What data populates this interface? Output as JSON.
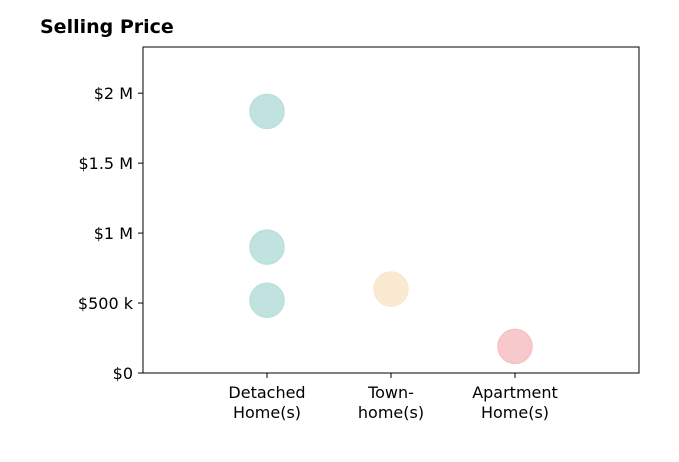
{
  "chart_data": {
    "type": "scatter",
    "title": "Selling Price",
    "xlabel": "",
    "ylabel": "",
    "categories": [
      [
        "Detached",
        "Home(s)"
      ],
      [
        "Town-",
        "home(s)"
      ],
      [
        "Apartment",
        "Home(s)"
      ]
    ],
    "y_ticks": [
      {
        "value": 0,
        "label": "$0"
      },
      {
        "value": 500000,
        "label": "$500 k"
      },
      {
        "value": 1000000,
        "label": "$1 M"
      },
      {
        "value": 1500000,
        "label": "$1.5 M"
      },
      {
        "value": 2000000,
        "label": "$2 M"
      }
    ],
    "ylim": [
      0,
      2330000
    ],
    "xlim": [
      -1,
      3
    ],
    "points": [
      {
        "category": 0,
        "value": 1870000,
        "color": "#b9e0db"
      },
      {
        "category": 0,
        "value": 900000,
        "color": "#b9e0db"
      },
      {
        "category": 0,
        "value": 520000,
        "color": "#b9e0db"
      },
      {
        "category": 1,
        "value": 600000,
        "color": "#f8e8cc"
      },
      {
        "category": 2,
        "value": 190000,
        "color": "#f6c2c6"
      }
    ],
    "grid": false,
    "legend": "none"
  }
}
